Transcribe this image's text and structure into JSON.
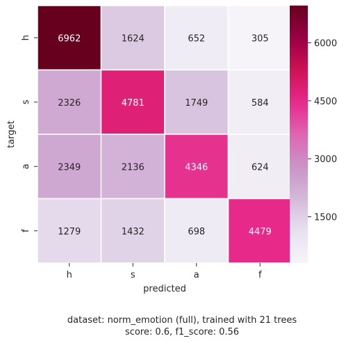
{
  "chart_data": {
    "type": "heatmap",
    "rows": [
      "h",
      "s",
      "a",
      "f"
    ],
    "cols": [
      "h",
      "s",
      "a",
      "f"
    ],
    "values": [
      [
        6962,
        1624,
        652,
        305
      ],
      [
        2326,
        4781,
        1749,
        584
      ],
      [
        2349,
        2136,
        4346,
        624
      ],
      [
        1279,
        1432,
        698,
        4479
      ]
    ],
    "xlabel": "predicted",
    "ylabel": "target",
    "colorbar": {
      "min": 305,
      "max": 6962,
      "ticks": [
        1500,
        3000,
        4500,
        6000
      ],
      "tick_labels": [
        "1500",
        "3000",
        "4500",
        "6000"
      ]
    },
    "colormap": "PuRd",
    "caption": [
      "dataset: norm_emotion (full), trained with 21 trees",
      "score: 0.6, f1_score: 0.56"
    ]
  },
  "colors": {
    "text_dark": "#262626",
    "text_light": "#ffffff",
    "axis": "#262626",
    "gridline": "#ffffff"
  }
}
